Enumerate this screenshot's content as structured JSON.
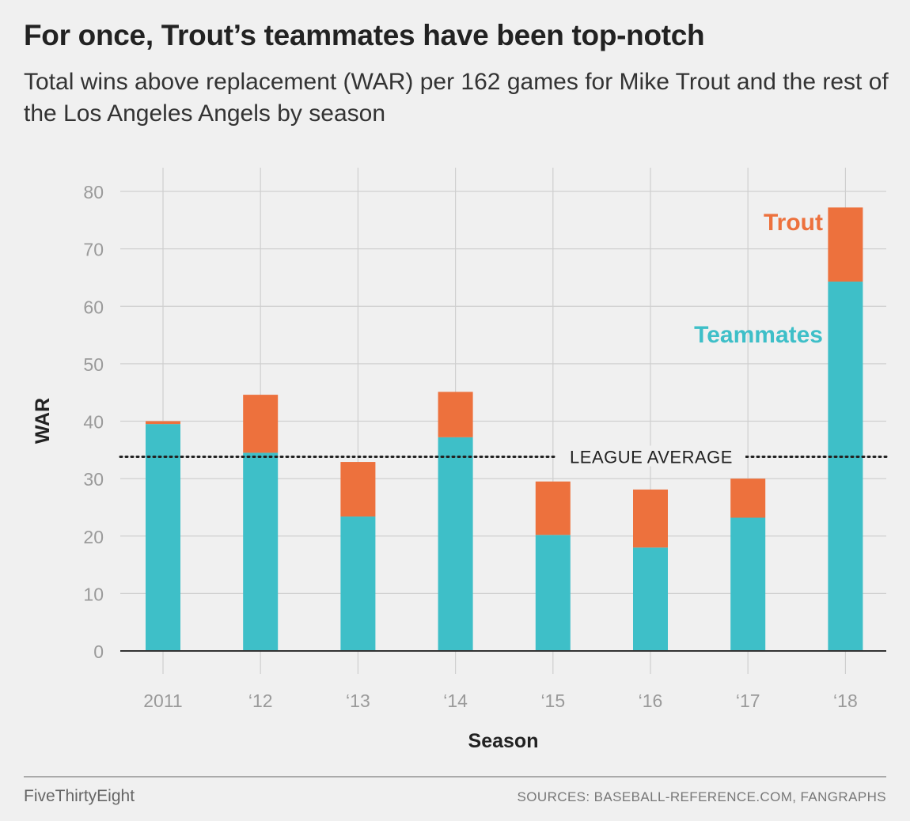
{
  "header": {
    "title": "For once, Trout’s teammates have been top-notch",
    "subtitle": "Total wins above replacement (WAR) per 162 games for Mike Trout and the rest of the Los Angeles Angels by season"
  },
  "chart_data": {
    "type": "bar",
    "stacked": true,
    "categories": [
      "2011",
      "‘12",
      "‘13",
      "‘14",
      "‘15",
      "‘16",
      "‘17",
      "‘18"
    ],
    "series": [
      {
        "name": "Teammates",
        "color": "#3ebfc8",
        "values": [
          39.5,
          34.5,
          23.4,
          37.2,
          20.2,
          18.0,
          23.2,
          64.3
        ]
      },
      {
        "name": "Trout",
        "color": "#ed713d",
        "values": [
          0.5,
          10.1,
          9.5,
          7.9,
          9.3,
          10.1,
          6.8,
          12.9
        ]
      }
    ],
    "xlabel": "Season",
    "ylabel": "WAR",
    "ylim": [
      0,
      80
    ],
    "yticks": [
      0,
      10,
      20,
      30,
      40,
      50,
      60,
      70,
      80
    ],
    "grid": true,
    "reference_line": {
      "label": "LEAGUE AVERAGE",
      "value": 33.8
    },
    "series_labels": [
      {
        "text": "Trout",
        "color": "#ed713d"
      },
      {
        "text": "Teammates",
        "color": "#3ebfc8"
      }
    ]
  },
  "footer": {
    "brand": "FiveThirtyEight",
    "sources": "SOURCES: BASEBALL-REFERENCE.COM, FANGRAPHS"
  }
}
